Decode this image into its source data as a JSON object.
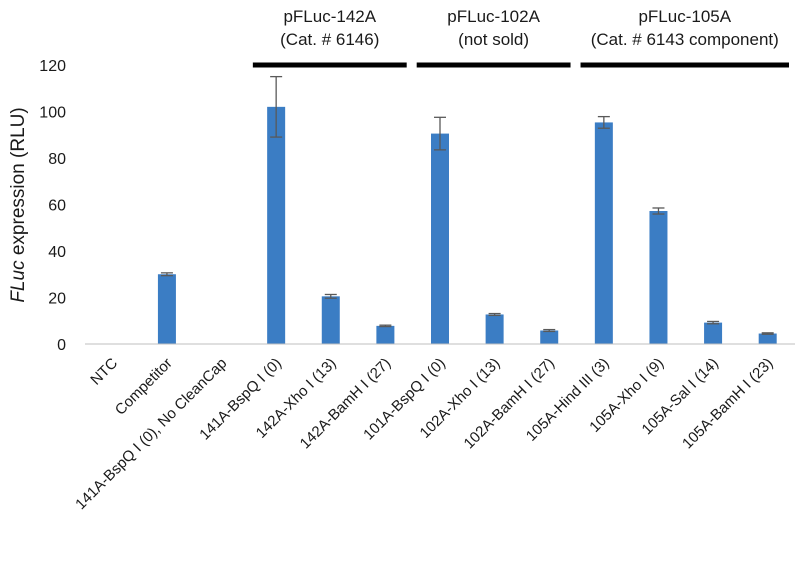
{
  "chart_data": {
    "type": "bar",
    "title": "",
    "xlabel": "",
    "ylabel_italic": "FLuc",
    "ylabel_rest": " expression (RLU)",
    "ylim": [
      0,
      120
    ],
    "yticks": [
      0,
      20,
      40,
      60,
      80,
      100,
      120
    ],
    "grid": false,
    "bar_color": "#3b7dc4",
    "categories": [
      "NTC",
      "Competitor",
      "141A-BspQ I (0), No CleanCap",
      "141A-BspQ I (0)",
      "142A-Xho I (13)",
      "142A-BamH I (27)",
      "101A-BspQ I (0)",
      "102A-Xho I (13)",
      "102A-BamH I (27)",
      "105A-Hind III (3)",
      "105A-Xho I (9)",
      "105A-Sal I (14)",
      "105A-BamH I (23)"
    ],
    "values": [
      0,
      30,
      0,
      102,
      20.5,
      7.8,
      90.5,
      12.7,
      5.8,
      95.3,
      57.2,
      9.2,
      4.5
    ],
    "errors": [
      0,
      0.6,
      0,
      13,
      0.8,
      0.3,
      7,
      0.4,
      0.4,
      2.5,
      1.3,
      0.5,
      0.3
    ],
    "groups": [
      {
        "line1": "pFLuc-142A",
        "line2": "(Cat. # 6146)",
        "from": 3,
        "to": 5
      },
      {
        "line1": "pFLuc-102A",
        "line2": "(not sold)",
        "from": 6,
        "to": 8
      },
      {
        "line1": "pFLuc-105A",
        "line2": "(Cat. # 6143 component)",
        "from": 9,
        "to": 12
      }
    ]
  }
}
